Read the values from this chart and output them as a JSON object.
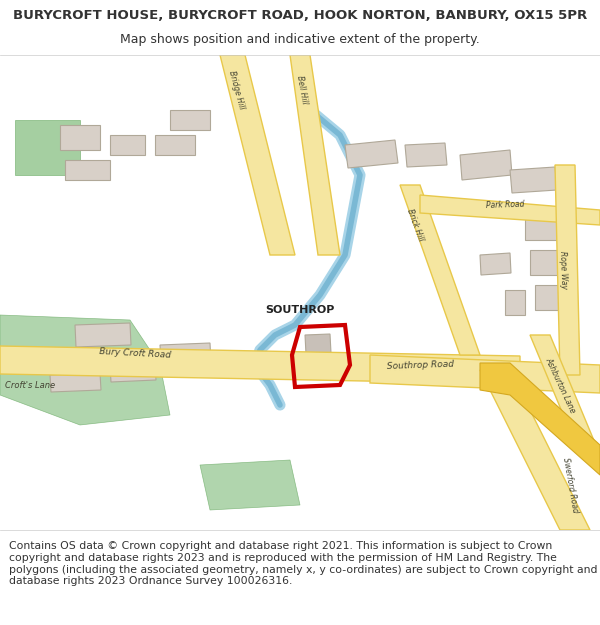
{
  "title": "BURYCROFT HOUSE, BURYCROFT ROAD, HOOK NORTON, BANBURY, OX15 5PR",
  "subtitle": "Map shows position and indicative extent of the property.",
  "footer": "Contains OS data © Crown copyright and database right 2021. This information is subject to Crown copyright and database rights 2023 and is reproduced with the permission of HM Land Registry. The polygons (including the associated geometry, namely x, y co-ordinates) are subject to Crown copyright and database rights 2023 Ordnance Survey 100026316.",
  "title_fontsize": 9.5,
  "subtitle_fontsize": 9,
  "footer_fontsize": 7.8,
  "bg_color": "#f5f0e8",
  "map_bg": "#f2ede4",
  "road_color_main": "#f5e6a0",
  "road_color_outline": "#e8c84a",
  "building_color": "#d8d0c8",
  "building_edge": "#b0a898",
  "water_color": "#a8d4e8",
  "green_color": "#8fc48a",
  "red_outline_color": "#cc0000",
  "text_color": "#333333",
  "header_bg": "#ffffff",
  "footer_bg": "#ffffff"
}
